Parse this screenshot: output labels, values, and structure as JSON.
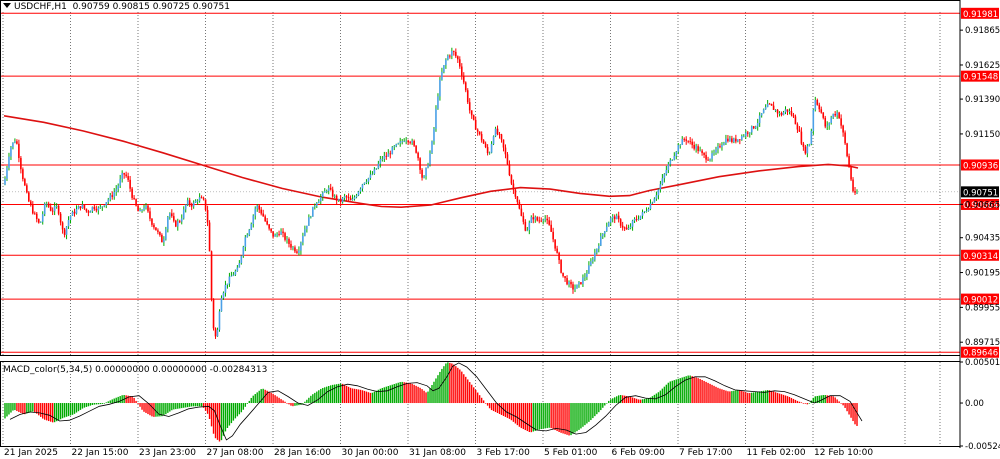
{
  "header": {
    "symbol": "USDCHF,H1",
    "ohlc": "0.90759 0.90815 0.90725 0.90751"
  },
  "macd_header": "MACD_color(5,34,5) 0.00000000 0.00000000 -0.00284313",
  "colors": {
    "bull": "#00aa00",
    "bull_body": "#4aa0e8",
    "bear": "#ff0000",
    "ma": "#dd1111",
    "level_line": "#ff0000",
    "grid": "#555555",
    "label_bg": "#ff0000",
    "price_tag_bg": "#000000"
  },
  "chart_data": [
    {
      "type": "candlestick",
      "title": "",
      "y_ticks": [
        "0.91865",
        "0.91625",
        "0.91390",
        "0.91150",
        "0.90665",
        "0.90435",
        "0.90195",
        "0.89955",
        "0.89715"
      ],
      "ylim": [
        0.8962,
        0.9199
      ],
      "x_labels": [
        "21 Jan 2025",
        "22 Jan 15:00",
        "23 Jan 23:00",
        "27 Jan 08:00",
        "28 Jan 16:00",
        "30 Jan 00:00",
        "31 Jan 08:00",
        "3 Feb 17:00",
        "5 Feb 01:00",
        "6 Feb 09:00",
        "7 Feb 17:00",
        "11 Feb 02:00",
        "12 Feb 10:00"
      ],
      "levels": [
        {
          "label": "0.91981",
          "value": 0.91981
        },
        {
          "label": "0.91548",
          "value": 0.91548
        },
        {
          "label": "0.90936",
          "value": 0.90936
        },
        {
          "label": "0.90664",
          "value": 0.90664
        },
        {
          "label": "0.90314",
          "value": 0.90314
        },
        {
          "label": "0.90012",
          "value": 0.90012
        },
        {
          "label": "0.89646",
          "value": 0.89646
        }
      ],
      "last_price": {
        "label": "0.90751",
        "value": 0.90751
      },
      "close_path": [
        [
          0,
          0.908
        ],
        [
          6,
          0.9105
        ],
        [
          12,
          0.9112
        ],
        [
          18,
          0.9088
        ],
        [
          24,
          0.907
        ],
        [
          30,
          0.906
        ],
        [
          36,
          0.9052
        ],
        [
          42,
          0.9068
        ],
        [
          48,
          0.9062
        ],
        [
          54,
          0.9065
        ],
        [
          60,
          0.9045
        ],
        [
          66,
          0.9058
        ],
        [
          72,
          0.9062
        ],
        [
          78,
          0.9066
        ],
        [
          84,
          0.9061
        ],
        [
          90,
          0.9065
        ],
        [
          96,
          0.9063
        ],
        [
          102,
          0.9068
        ],
        [
          108,
          0.9072
        ],
        [
          114,
          0.9078
        ],
        [
          120,
          0.9088
        ],
        [
          124,
          0.9085
        ],
        [
          130,
          0.907
        ],
        [
          136,
          0.906
        ],
        [
          142,
          0.9066
        ],
        [
          148,
          0.9055
        ],
        [
          154,
          0.9048
        ],
        [
          160,
          0.904
        ],
        [
          166,
          0.9062
        ],
        [
          172,
          0.9052
        ],
        [
          178,
          0.9056
        ],
        [
          184,
          0.9068
        ],
        [
          190,
          0.9066
        ],
        [
          196,
          0.9071
        ],
        [
          202,
          0.9068
        ],
        [
          206,
          0.905
        ],
        [
          210,
          0.8985
        ],
        [
          214,
          0.8972
        ],
        [
          218,
          0.9002
        ],
        [
          224,
          0.9012
        ],
        [
          230,
          0.9018
        ],
        [
          236,
          0.9022
        ],
        [
          242,
          0.9042
        ],
        [
          248,
          0.9052
        ],
        [
          254,
          0.9066
        ],
        [
          260,
          0.906
        ],
        [
          266,
          0.905
        ],
        [
          272,
          0.9044
        ],
        [
          278,
          0.9048
        ],
        [
          284,
          0.9042
        ],
        [
          290,
          0.9037
        ],
        [
          296,
          0.9034
        ],
        [
          302,
          0.9048
        ],
        [
          308,
          0.9058
        ],
        [
          314,
          0.9068
        ],
        [
          320,
          0.9072
        ],
        [
          326,
          0.9078
        ],
        [
          332,
          0.9072
        ],
        [
          338,
          0.9068
        ],
        [
          344,
          0.9072
        ],
        [
          350,
          0.9068
        ],
        [
          356,
          0.9075
        ],
        [
          362,
          0.9082
        ],
        [
          368,
          0.9085
        ],
        [
          374,
          0.909
        ],
        [
          380,
          0.9098
        ],
        [
          386,
          0.91
        ],
        [
          392,
          0.9105
        ],
        [
          398,
          0.9108
        ],
        [
          404,
          0.9112
        ],
        [
          410,
          0.911
        ],
        [
          416,
          0.9102
        ],
        [
          422,
          0.9082
        ],
        [
          428,
          0.9098
        ],
        [
          432,
          0.9112
        ],
        [
          436,
          0.9138
        ],
        [
          440,
          0.9155
        ],
        [
          446,
          0.9168
        ],
        [
          452,
          0.9172
        ],
        [
          458,
          0.9165
        ],
        [
          464,
          0.9148
        ],
        [
          470,
          0.9128
        ],
        [
          476,
          0.9118
        ],
        [
          482,
          0.911
        ],
        [
          488,
          0.91
        ],
        [
          494,
          0.9118
        ],
        [
          500,
          0.9112
        ],
        [
          506,
          0.9098
        ],
        [
          512,
          0.9078
        ],
        [
          516,
          0.9072
        ],
        [
          520,
          0.906
        ],
        [
          526,
          0.9048
        ],
        [
          532,
          0.9058
        ],
        [
          538,
          0.9055
        ],
        [
          544,
          0.9058
        ],
        [
          550,
          0.905
        ],
        [
          556,
          0.9035
        ],
        [
          562,
          0.9018
        ],
        [
          568,
          0.9012
        ],
        [
          574,
          0.9008
        ],
        [
          580,
          0.9012
        ],
        [
          586,
          0.9018
        ],
        [
          592,
          0.9028
        ],
        [
          598,
          0.9038
        ],
        [
          604,
          0.9048
        ],
        [
          610,
          0.9056
        ],
        [
          616,
          0.9058
        ],
        [
          622,
          0.9052
        ],
        [
          628,
          0.9048
        ],
        [
          634,
          0.9055
        ],
        [
          640,
          0.9058
        ],
        [
          646,
          0.9062
        ],
        [
          652,
          0.9068
        ],
        [
          658,
          0.9075
        ],
        [
          664,
          0.9085
        ],
        [
          668,
          0.9092
        ],
        [
          674,
          0.91
        ],
        [
          680,
          0.9108
        ],
        [
          686,
          0.9112
        ],
        [
          692,
          0.9108
        ],
        [
          698,
          0.9105
        ],
        [
          704,
          0.91
        ],
        [
          710,
          0.9098
        ],
        [
          716,
          0.9102
        ],
        [
          722,
          0.9108
        ],
        [
          728,
          0.9112
        ],
        [
          734,
          0.911
        ],
        [
          740,
          0.9112
        ],
        [
          746,
          0.9115
        ],
        [
          752,
          0.9118
        ],
        [
          758,
          0.9122
        ],
        [
          764,
          0.913
        ],
        [
          770,
          0.9135
        ],
        [
          776,
          0.9132
        ],
        [
          782,
          0.9128
        ],
        [
          788,
          0.9132
        ],
        [
          794,
          0.9128
        ],
        [
          800,
          0.9118
        ],
        [
          806,
          0.9102
        ],
        [
          812,
          0.911
        ],
        [
          816,
          0.914
        ],
        [
          822,
          0.9132
        ],
        [
          828,
          0.9118
        ],
        [
          834,
          0.9128
        ],
        [
          840,
          0.913
        ],
        [
          846,
          0.9112
        ],
        [
          852,
          0.9088
        ],
        [
          856,
          0.9072
        ],
        [
          860,
          0.9075
        ]
      ],
      "ma_path": [
        [
          0,
          0.91275
        ],
        [
          40,
          0.9123
        ],
        [
          80,
          0.9117
        ],
        [
          120,
          0.911
        ],
        [
          160,
          0.9102
        ],
        [
          200,
          0.90935
        ],
        [
          240,
          0.9085
        ],
        [
          280,
          0.90775
        ],
        [
          320,
          0.90715
        ],
        [
          360,
          0.9067
        ],
        [
          380,
          0.9065
        ],
        [
          400,
          0.90645
        ],
        [
          430,
          0.9066
        ],
        [
          460,
          0.9071
        ],
        [
          490,
          0.90755
        ],
        [
          520,
          0.9078
        ],
        [
          550,
          0.9077
        ],
        [
          580,
          0.9074
        ],
        [
          610,
          0.9072
        ],
        [
          630,
          0.90725
        ],
        [
          650,
          0.9076
        ],
        [
          680,
          0.908
        ],
        [
          720,
          0.90855
        ],
        [
          760,
          0.90895
        ],
        [
          800,
          0.90925
        ],
        [
          830,
          0.9094
        ],
        [
          850,
          0.9093
        ],
        [
          860,
          0.90915
        ]
      ]
    },
    {
      "type": "bar",
      "title": "MACD_color(5,34,5)",
      "y_ticks": [
        "0.0050123",
        "0.00",
        "-0.0052489"
      ],
      "ylim": [
        -0.0052489,
        0.0050123
      ],
      "hist_path": [
        [
          0,
          -0.002
        ],
        [
          10,
          -0.0008
        ],
        [
          20,
          -0.0014
        ],
        [
          30,
          -0.001
        ],
        [
          40,
          -0.002
        ],
        [
          50,
          -0.0024
        ],
        [
          60,
          -0.0018
        ],
        [
          70,
          -0.0014
        ],
        [
          80,
          -0.0006
        ],
        [
          90,
          -0.0002
        ],
        [
          100,
          -0.0001
        ],
        [
          110,
          0.0005
        ],
        [
          120,
          0.001
        ],
        [
          130,
          0.0008
        ],
        [
          140,
          -0.001
        ],
        [
          150,
          -0.0017
        ],
        [
          160,
          -0.0016
        ],
        [
          170,
          -0.0008
        ],
        [
          180,
          -0.0006
        ],
        [
          190,
          -0.0004
        ],
        [
          200,
          -0.0004
        ],
        [
          206,
          -0.0015
        ],
        [
          212,
          -0.0042
        ],
        [
          218,
          -0.0048
        ],
        [
          224,
          -0.0032
        ],
        [
          232,
          -0.002
        ],
        [
          240,
          -0.001
        ],
        [
          250,
          0.0008
        ],
        [
          260,
          0.0018
        ],
        [
          270,
          0.0012
        ],
        [
          280,
          0.0004
        ],
        [
          290,
          -0.0004
        ],
        [
          300,
          -0.0002
        ],
        [
          310,
          0.001
        ],
        [
          320,
          0.0018
        ],
        [
          330,
          0.0022
        ],
        [
          340,
          0.0024
        ],
        [
          350,
          0.0018
        ],
        [
          360,
          0.0016
        ],
        [
          370,
          0.0012
        ],
        [
          380,
          0.0018
        ],
        [
          390,
          0.0022
        ],
        [
          400,
          0.0026
        ],
        [
          410,
          0.0024
        ],
        [
          420,
          0.0018
        ],
        [
          426,
          0.0012
        ],
        [
          432,
          0.0024
        ],
        [
          440,
          0.004
        ],
        [
          446,
          0.005
        ],
        [
          452,
          0.0048
        ],
        [
          460,
          0.004
        ],
        [
          470,
          0.0024
        ],
        [
          480,
          0.0008
        ],
        [
          490,
          -0.0008
        ],
        [
          500,
          -0.0014
        ],
        [
          510,
          -0.002
        ],
        [
          520,
          -0.003
        ],
        [
          530,
          -0.0036
        ],
        [
          540,
          -0.0032
        ],
        [
          550,
          -0.003
        ],
        [
          560,
          -0.0036
        ],
        [
          570,
          -0.004
        ],
        [
          580,
          -0.0032
        ],
        [
          590,
          -0.0022
        ],
        [
          600,
          -0.001
        ],
        [
          610,
          0.0004
        ],
        [
          620,
          0.001
        ],
        [
          630,
          0.0008
        ],
        [
          640,
          0.0004
        ],
        [
          650,
          0.0006
        ],
        [
          660,
          0.0014
        ],
        [
          670,
          0.0026
        ],
        [
          680,
          0.003
        ],
        [
          690,
          0.0034
        ],
        [
          700,
          0.003
        ],
        [
          710,
          0.0024
        ],
        [
          720,
          0.0018
        ],
        [
          730,
          0.0014
        ],
        [
          740,
          0.0016
        ],
        [
          750,
          0.0012
        ],
        [
          760,
          0.0014
        ],
        [
          770,
          0.0016
        ],
        [
          780,
          0.0012
        ],
        [
          790,
          0.0008
        ],
        [
          800,
          0.0002
        ],
        [
          810,
          -0.0002
        ],
        [
          816,
          0.0008
        ],
        [
          826,
          0.001
        ],
        [
          836,
          0.0008
        ],
        [
          846,
          -0.0004
        ],
        [
          852,
          -0.0016
        ],
        [
          858,
          -0.0028
        ]
      ]
    }
  ]
}
